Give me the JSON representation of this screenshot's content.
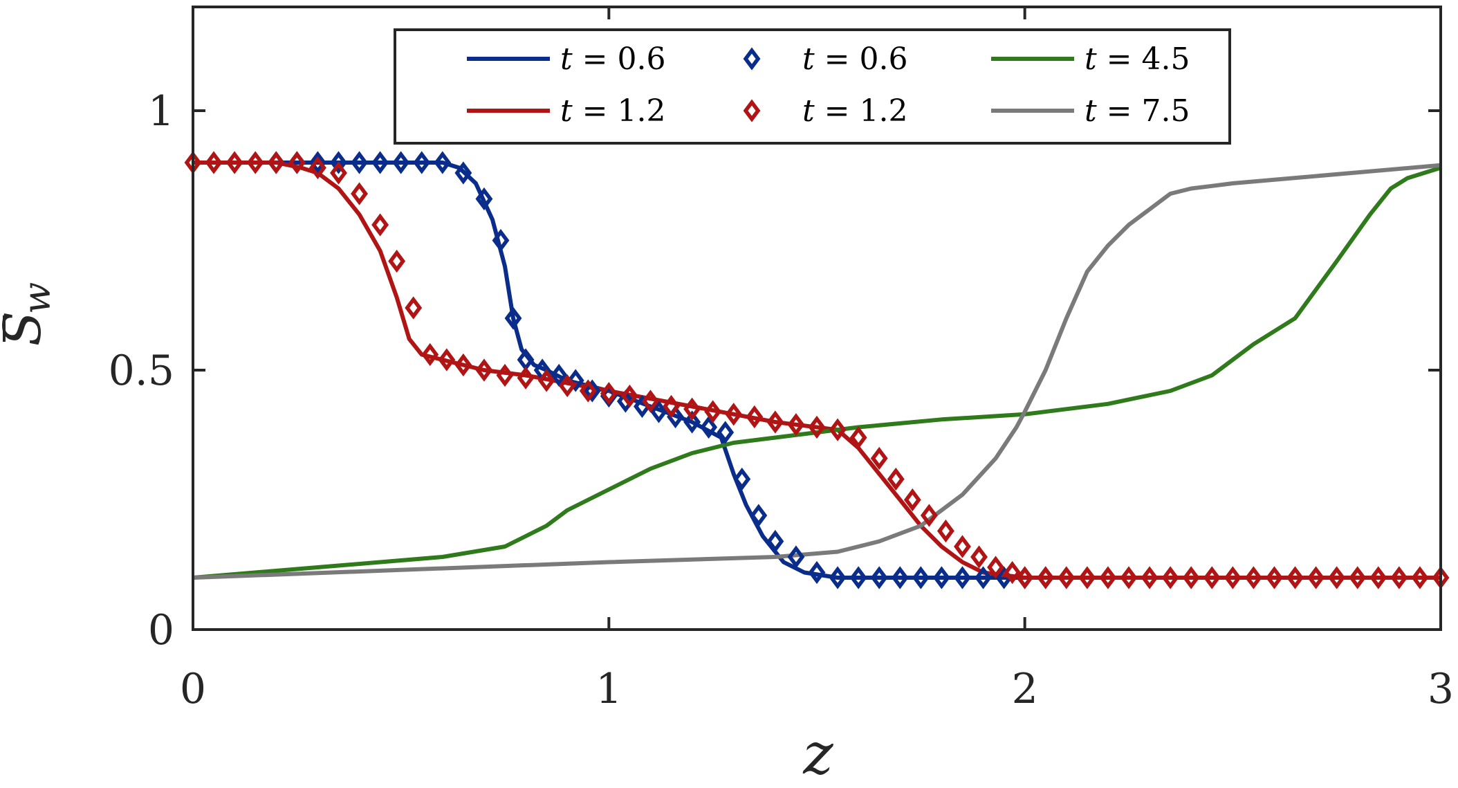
{
  "chart_data": {
    "type": "line",
    "xlabel": "z",
    "ylabel_main": "S",
    "ylabel_sub": "w",
    "xlim": [
      0,
      3
    ],
    "ylim": [
      0,
      1.2
    ],
    "xticks": [
      0,
      1,
      2,
      3
    ],
    "xtick_labels": [
      "0",
      "1",
      "2",
      "3"
    ],
    "yticks": [
      0,
      0.5,
      1
    ],
    "ytick_labels": [
      "0",
      "0.5",
      "1"
    ],
    "grid": false,
    "legend_position": "top-center",
    "colors": {
      "blue": "#0a2d8c",
      "red": "#b01414",
      "green": "#2f7a1a",
      "gray": "#7a7a7a",
      "axis": "#262626"
    },
    "series": [
      {
        "name": "t = 0.6",
        "style": "line",
        "color": "#0a2d8c",
        "x": [
          0,
          0.2,
          0.6,
          0.64,
          0.68,
          0.72,
          0.75,
          0.77,
          0.79,
          0.82,
          0.85,
          0.9,
          1.0,
          1.1,
          1.2,
          1.27,
          1.3,
          1.33,
          1.37,
          1.42,
          1.47,
          1.55,
          2.05
        ],
        "y": [
          0.9,
          0.9,
          0.9,
          0.89,
          0.86,
          0.79,
          0.7,
          0.6,
          0.54,
          0.51,
          0.5,
          0.48,
          0.46,
          0.43,
          0.4,
          0.37,
          0.3,
          0.24,
          0.18,
          0.13,
          0.11,
          0.1,
          0.1
        ]
      },
      {
        "name": "t = 1.2",
        "style": "line",
        "color": "#b01414",
        "x": [
          0,
          0.2,
          0.26,
          0.3,
          0.35,
          0.4,
          0.45,
          0.49,
          0.52,
          0.55,
          0.6,
          0.7,
          0.8,
          1.0,
          1.2,
          1.4,
          1.55,
          1.6,
          1.65,
          1.7,
          1.75,
          1.8,
          1.85,
          1.9,
          1.95,
          2.0,
          3.0
        ],
        "y": [
          0.9,
          0.9,
          0.89,
          0.88,
          0.85,
          0.8,
          0.73,
          0.64,
          0.56,
          0.53,
          0.52,
          0.5,
          0.49,
          0.46,
          0.43,
          0.4,
          0.385,
          0.35,
          0.3,
          0.25,
          0.2,
          0.16,
          0.13,
          0.11,
          0.105,
          0.1,
          0.1
        ]
      },
      {
        "name": "t = 0.6",
        "style": "marker",
        "color": "#0a2d8c",
        "x": [
          0.2,
          0.25,
          0.3,
          0.35,
          0.4,
          0.45,
          0.5,
          0.55,
          0.6,
          0.65,
          0.7,
          0.74,
          0.77,
          0.8,
          0.84,
          0.88,
          0.92,
          0.96,
          1.0,
          1.04,
          1.08,
          1.12,
          1.16,
          1.2,
          1.24,
          1.28,
          1.32,
          1.36,
          1.4,
          1.45,
          1.5,
          1.55,
          1.6,
          1.65,
          1.7,
          1.75,
          1.8,
          1.85,
          1.9,
          1.95,
          2.0,
          2.05
        ],
        "y": [
          0.9,
          0.9,
          0.9,
          0.9,
          0.9,
          0.9,
          0.9,
          0.9,
          0.9,
          0.88,
          0.83,
          0.75,
          0.6,
          0.52,
          0.5,
          0.49,
          0.48,
          0.46,
          0.45,
          0.44,
          0.43,
          0.42,
          0.41,
          0.4,
          0.39,
          0.38,
          0.29,
          0.22,
          0.17,
          0.14,
          0.11,
          0.1,
          0.1,
          0.1,
          0.1,
          0.1,
          0.1,
          0.1,
          0.1,
          0.1,
          0.1,
          0.1
        ]
      },
      {
        "name": "t = 1.2",
        "style": "marker",
        "color": "#b01414",
        "x": [
          0,
          0.05,
          0.1,
          0.15,
          0.2,
          0.25,
          0.3,
          0.35,
          0.4,
          0.45,
          0.49,
          0.53,
          0.57,
          0.61,
          0.65,
          0.7,
          0.75,
          0.8,
          0.85,
          0.9,
          0.95,
          1.0,
          1.05,
          1.1,
          1.15,
          1.2,
          1.25,
          1.3,
          1.35,
          1.4,
          1.45,
          1.5,
          1.55,
          1.6,
          1.65,
          1.69,
          1.73,
          1.77,
          1.81,
          1.85,
          1.89,
          1.93,
          1.97,
          2.0,
          2.05,
          2.1,
          2.15,
          2.2,
          2.25,
          2.3,
          2.35,
          2.4,
          2.45,
          2.5,
          2.55,
          2.6,
          2.65,
          2.7,
          2.75,
          2.8,
          2.85,
          2.9,
          2.95,
          3.0
        ],
        "y": [
          0.9,
          0.9,
          0.9,
          0.9,
          0.9,
          0.9,
          0.89,
          0.88,
          0.84,
          0.78,
          0.71,
          0.62,
          0.53,
          0.52,
          0.51,
          0.5,
          0.49,
          0.485,
          0.48,
          0.47,
          0.46,
          0.455,
          0.45,
          0.44,
          0.43,
          0.425,
          0.42,
          0.415,
          0.41,
          0.4,
          0.395,
          0.39,
          0.385,
          0.37,
          0.33,
          0.29,
          0.25,
          0.22,
          0.19,
          0.16,
          0.14,
          0.12,
          0.11,
          0.1,
          0.1,
          0.1,
          0.1,
          0.1,
          0.1,
          0.1,
          0.1,
          0.1,
          0.1,
          0.1,
          0.1,
          0.1,
          0.1,
          0.1,
          0.1,
          0.1,
          0.1,
          0.1,
          0.1,
          0.1
        ]
      },
      {
        "name": "t = 4.5",
        "style": "line",
        "color": "#2f7a1a",
        "x": [
          0,
          0.3,
          0.6,
          0.75,
          0.8,
          0.85,
          0.9,
          1.0,
          1.1,
          1.2,
          1.3,
          1.4,
          1.5,
          1.6,
          1.8,
          2.0,
          2.2,
          2.35,
          2.45,
          2.55,
          2.65,
          2.75,
          2.83,
          2.88,
          2.92,
          2.96,
          3.0
        ],
        "y": [
          0.1,
          0.12,
          0.14,
          0.16,
          0.18,
          0.2,
          0.23,
          0.27,
          0.31,
          0.34,
          0.36,
          0.37,
          0.38,
          0.39,
          0.405,
          0.415,
          0.435,
          0.46,
          0.49,
          0.55,
          0.6,
          0.71,
          0.8,
          0.85,
          0.87,
          0.88,
          0.89
        ]
      },
      {
        "name": "t = 7.5",
        "style": "line",
        "color": "#7a7a7a",
        "x": [
          0,
          0.5,
          1.0,
          1.4,
          1.55,
          1.65,
          1.75,
          1.85,
          1.93,
          1.98,
          2.0,
          2.05,
          2.1,
          2.15,
          2.2,
          2.25,
          2.3,
          2.35,
          2.4,
          2.45,
          2.5,
          3.0
        ],
        "y": [
          0.1,
          0.115,
          0.13,
          0.14,
          0.15,
          0.17,
          0.2,
          0.26,
          0.33,
          0.39,
          0.42,
          0.5,
          0.6,
          0.69,
          0.74,
          0.78,
          0.81,
          0.84,
          0.85,
          0.855,
          0.86,
          0.895
        ]
      }
    ],
    "legend": [
      {
        "label": "t = 0.6",
        "style": "line",
        "color": "#0a2d8c",
        "col": 0,
        "row": 0
      },
      {
        "label": "t = 1.2",
        "style": "line",
        "color": "#b01414",
        "col": 0,
        "row": 1
      },
      {
        "label": "t = 0.6",
        "style": "marker",
        "color": "#0a2d8c",
        "col": 1,
        "row": 0
      },
      {
        "label": "t = 1.2",
        "style": "marker",
        "color": "#b01414",
        "col": 1,
        "row": 1
      },
      {
        "label": "t = 4.5",
        "style": "line",
        "color": "#2f7a1a",
        "col": 2,
        "row": 0
      },
      {
        "label": "t = 7.5",
        "style": "line",
        "color": "#7a7a7a",
        "col": 2,
        "row": 1
      }
    ]
  }
}
